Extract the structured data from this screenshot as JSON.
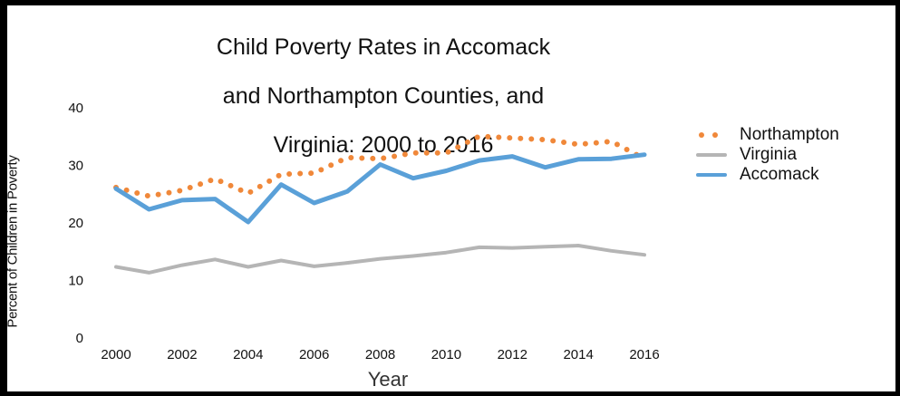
{
  "chart_data": {
    "type": "line",
    "title": "Child Poverty Rates in Accomack and Northampton Counties, and Virginia: 2000 to 2016",
    "title_lines": [
      "Child Poverty Rates in Accomack",
      "and Northampton Counties, and",
      "Virginia: 2000 to 2016"
    ],
    "xlabel": "Year",
    "ylabel": "Percent of Children in Poverty",
    "x": [
      2000,
      2001,
      2002,
      2003,
      2004,
      2005,
      2006,
      2007,
      2008,
      2009,
      2010,
      2011,
      2012,
      2013,
      2014,
      2015,
      2016
    ],
    "x_ticks": [
      "2000",
      "2002",
      "2004",
      "2006",
      "2008",
      "2010",
      "2012",
      "2014",
      "2016"
    ],
    "y_ticks": [
      "0",
      "10",
      "20",
      "30",
      "40"
    ],
    "ylim": [
      0,
      40
    ],
    "grid": false,
    "legend_position": "right",
    "series": [
      {
        "name": "Northampton",
        "style": "dotted",
        "color": "#f0883a",
        "values": [
          26,
          24.5,
          25.5,
          27.5,
          25,
          28.3,
          28.5,
          31.2,
          31,
          32,
          32,
          34.9,
          34.6,
          34.3,
          33.5,
          34,
          31
        ]
      },
      {
        "name": "Virginia",
        "style": "solid",
        "color": "#b5b5b5",
        "values": [
          12.2,
          11.2,
          12.5,
          13.5,
          12.2,
          13.3,
          12.3,
          12.9,
          13.6,
          14.1,
          14.7,
          15.6,
          15.5,
          15.7,
          15.9,
          15,
          14.3
        ]
      },
      {
        "name": "Accomack",
        "style": "solid",
        "color": "#5aa0d8",
        "values": [
          25.8,
          22.2,
          23.8,
          24,
          20,
          26.5,
          23.3,
          25.3,
          30,
          27.6,
          28.9,
          30.7,
          31.4,
          29.5,
          30.9,
          31,
          31.7
        ]
      }
    ]
  }
}
